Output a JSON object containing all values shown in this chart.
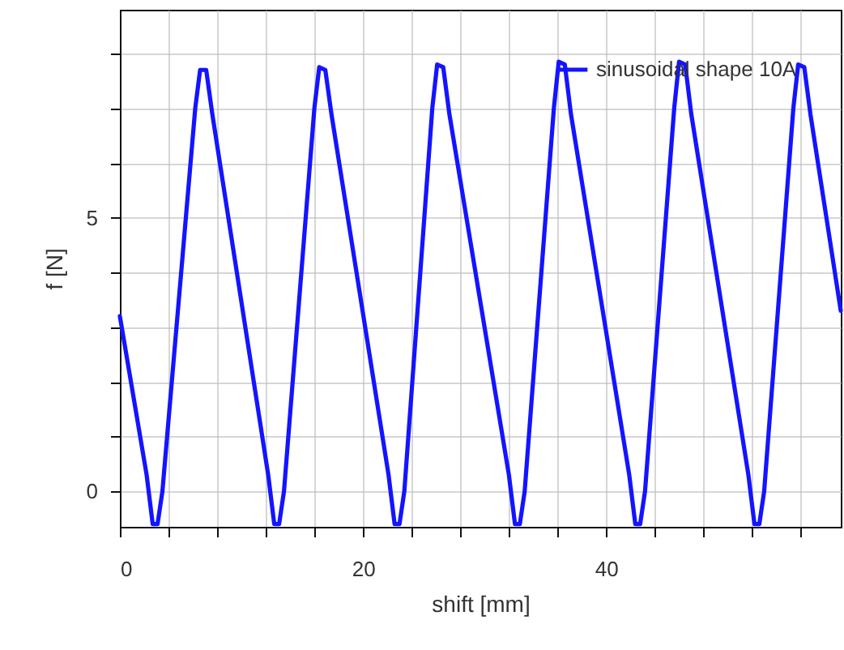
{
  "chart_data": {
    "type": "line",
    "xlabel": "shift [mm]",
    "ylabel": "f [N]",
    "x": [
      0,
      2.2,
      2.7,
      3.1,
      3.5,
      6.2,
      6.6,
      7.1,
      7.6,
      12.2,
      12.7,
      13.1,
      13.5,
      16.0,
      16.4,
      16.9,
      17.4,
      22.1,
      22.6,
      23.0,
      23.4,
      25.7,
      26.1,
      26.6,
      27.1,
      32.0,
      32.5,
      32.9,
      33.3,
      35.7,
      36.1,
      36.6,
      37.1,
      41.9,
      42.4,
      42.8,
      43.2,
      45.6,
      46.0,
      46.5,
      47.0,
      51.7,
      52.2,
      52.6,
      53.0,
      55.4,
      55.8,
      56.3,
      56.8,
      59.3
    ],
    "series": [
      {
        "name": "sinusoidal shape 10A",
        "color": "#1414ff",
        "values": [
          3.2,
          0.3,
          -0.6,
          -0.6,
          0.0,
          7.0,
          7.7,
          7.7,
          6.9,
          0.3,
          -0.6,
          -0.6,
          0.0,
          7.0,
          7.75,
          7.7,
          6.9,
          0.3,
          -0.6,
          -0.6,
          0.0,
          7.0,
          7.8,
          7.75,
          6.9,
          0.3,
          -0.6,
          -0.6,
          0.0,
          7.0,
          7.85,
          7.8,
          6.9,
          0.3,
          -0.6,
          -0.6,
          0.0,
          7.0,
          7.85,
          7.8,
          6.9,
          0.3,
          -0.6,
          -0.6,
          0.0,
          7.0,
          7.8,
          7.75,
          6.9,
          3.3
        ]
      }
    ],
    "xlim": [
      0,
      59.3
    ],
    "ylim": [
      -0.65,
      8.8
    ],
    "xticks": [
      0,
      {
        "value": 4,
        "label": null
      },
      {
        "value": 8,
        "label": null
      },
      {
        "value": 12,
        "label": null
      },
      {
        "value": 16,
        "label": null
      },
      20,
      {
        "value": 24,
        "label": null
      },
      {
        "value": 28,
        "label": null
      },
      {
        "value": 32,
        "label": null
      },
      {
        "value": 36,
        "label": null
      },
      40,
      {
        "value": 44,
        "label": null
      },
      {
        "value": 48,
        "label": null
      },
      {
        "value": 52,
        "label": null
      },
      {
        "value": 56,
        "label": null
      }
    ],
    "yticks": [
      0,
      {
        "value": 1,
        "label": null
      },
      {
        "value": 2,
        "label": null
      },
      {
        "value": 3,
        "label": null
      },
      {
        "value": 4,
        "label": null
      },
      5,
      {
        "value": 6,
        "label": null
      },
      {
        "value": 7,
        "label": null
      },
      {
        "value": 8,
        "label": null
      }
    ],
    "grid": true,
    "legend": "top right",
    "line_style": "solid",
    "marker": "none"
  }
}
